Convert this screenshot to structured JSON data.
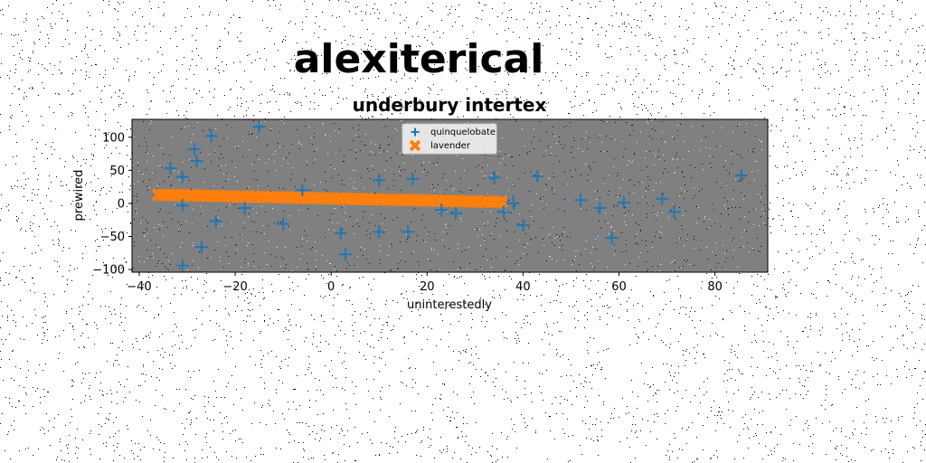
{
  "chart_data": {
    "type": "scatter",
    "suptitle": "alexiterical",
    "title": "underbury intertex",
    "xlabel": "uninterestedly",
    "ylabel": "prewired",
    "xlim": [
      -41.5,
      91
    ],
    "ylim": [
      -104,
      127
    ],
    "x_ticks": [
      -40,
      -20,
      0,
      20,
      40,
      60,
      80
    ],
    "y_ticks": [
      -100,
      -50,
      0,
      50,
      100
    ],
    "grid": false,
    "legend_position": "top-center",
    "plot_background": "#808080",
    "series": [
      {
        "name": "quinquelobate",
        "marker": "plus",
        "color": "#1f77b4",
        "points": [
          [
            -15,
            116
          ],
          [
            -25,
            102
          ],
          [
            -28.5,
            82
          ],
          [
            -28,
            64
          ],
          [
            -33.5,
            53
          ],
          [
            -31,
            40
          ],
          [
            -31,
            -3
          ],
          [
            -24,
            -27
          ],
          [
            -27,
            -66
          ],
          [
            -31,
            -94
          ],
          [
            -18,
            -7
          ],
          [
            -10,
            -31
          ],
          [
            -6,
            20
          ],
          [
            2,
            -45
          ],
          [
            3,
            -77
          ],
          [
            10,
            35
          ],
          [
            10,
            -43
          ],
          [
            17,
            37
          ],
          [
            16,
            -43
          ],
          [
            23,
            -10
          ],
          [
            26,
            -15
          ],
          [
            34,
            39
          ],
          [
            36,
            -13
          ],
          [
            38,
            0
          ],
          [
            40,
            -33
          ],
          [
            43,
            41
          ],
          [
            52,
            5
          ],
          [
            56,
            -7
          ],
          [
            58.5,
            -52
          ],
          [
            61,
            1
          ],
          [
            69,
            7
          ],
          [
            71.5,
            -13
          ],
          [
            85.5,
            42
          ]
        ]
      },
      {
        "name": "lavender",
        "marker": "x",
        "color": "#ff7f0e",
        "line": {
          "x_start": -36,
          "x_end": 35.5,
          "y_start": 13,
          "y_end": 2,
          "count": 70
        }
      }
    ]
  }
}
